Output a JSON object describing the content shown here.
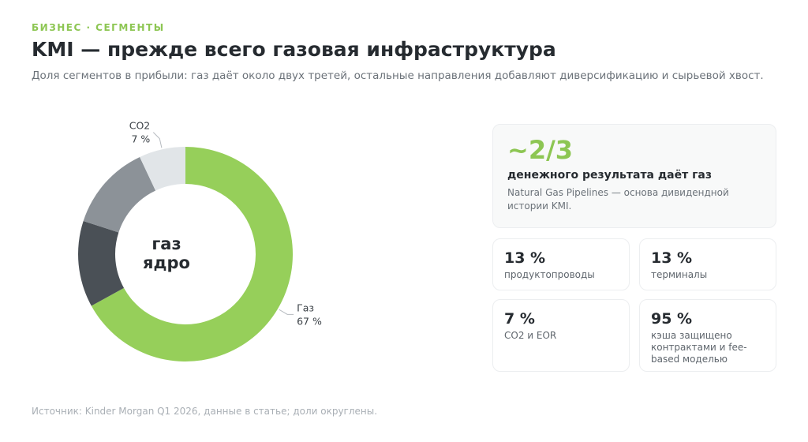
{
  "header": {
    "kicker": "БИЗНЕС · СЕГМЕНТЫ",
    "title": "KMI — прежде всего газовая инфраструктура",
    "subtitle": "Доля сегментов в прибыли: газ даёт около двух третей, остальные направления добавляют диверсификацию и сырьевой хвост."
  },
  "chart_data": {
    "type": "donut",
    "categories": [
      "Газ",
      null,
      null,
      "CO2"
    ],
    "values": [
      67,
      13,
      13,
      7
    ],
    "value_labels": [
      "67 %",
      null,
      null,
      "7 %"
    ],
    "colors": [
      "#96cf5a",
      "#4a5056",
      "#8c9298",
      "#e1e5e8"
    ],
    "center_label": [
      "газ",
      "ядро"
    ]
  },
  "highlight": {
    "value": "~2/3",
    "heading": "денежного результата даёт газ",
    "text": "Natural Gas Pipelines — основа дивидендной истории KMI."
  },
  "cards": [
    {
      "value": "13 %",
      "label": "продуктопроводы"
    },
    {
      "value": "13 %",
      "label": "терминалы"
    },
    {
      "value": "7 %",
      "label": "CO2 и EOR"
    },
    {
      "value": "95 %",
      "label": "кэша защищено контрактами и fee-based моделью"
    }
  ],
  "footer": {
    "source": "Источник: Kinder Morgan Q1 2026, данные в статье; доли округлены."
  }
}
